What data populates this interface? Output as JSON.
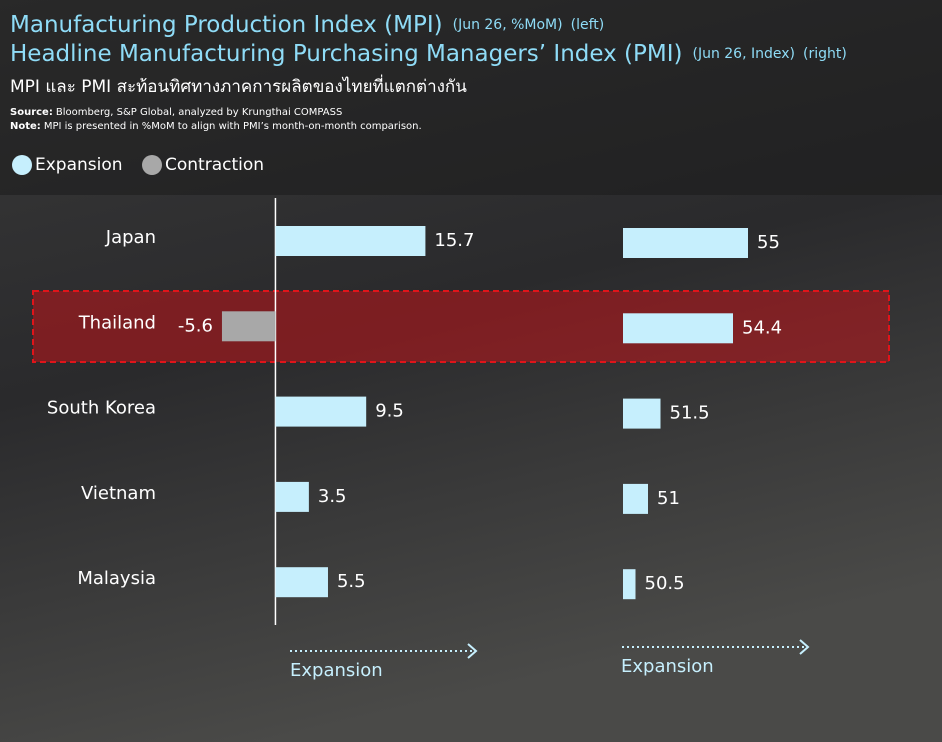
{
  "header": {
    "subtitle": "MPI และ PMI สะท้อนทิศทางภาคการผลิตของไทยที่แตกต่างกัน",
    "source_label": "Source:",
    "source": "Bloomberg, S&P Global, analyzed by Krungthai COMPASS",
    "note_label": "Note:",
    "note": "MPI is presented in %MoM to align with PMI’s month-on-month comparison.",
    "legend": [
      {
        "name": "Expansion",
        "color": "#c6effd"
      },
      {
        "name": "Contraction",
        "color": "#a8a8a8"
      }
    ]
  },
  "chart_data": [
    {
      "type": "hbar",
      "title": "Manufacturing Production Index (MPI)",
      "period": "(Jun 26, %MoM)",
      "side": "(left)",
      "categories": [
        "Japan",
        "Thailand",
        "South Korea",
        "Vietnam",
        "Malaysia"
      ],
      "values": [
        15.7,
        -5.6,
        9.5,
        3.5,
        5.5
      ],
      "colors": [
        "#c6effd",
        "#a8a8a8",
        "#c6effd",
        "#c6effd",
        "#c6effd"
      ],
      "xlim": [
        -28,
        30
      ],
      "annotation": "Expansion"
    },
    {
      "type": "hbar",
      "title": "Headline Manufacturing Purchasing Managers’ Index (PMI)",
      "period": "(Jun 26, Index)",
      "side": "(right)",
      "values": [
        55,
        54.4,
        51.5,
        51,
        50.5
      ],
      "colors": [
        "#c6effd",
        "#c6effd",
        "#c6effd",
        "#c6effd",
        "#c6effd"
      ],
      "xlim": [
        50,
        62
      ],
      "annotation": "Expansion"
    }
  ]
}
